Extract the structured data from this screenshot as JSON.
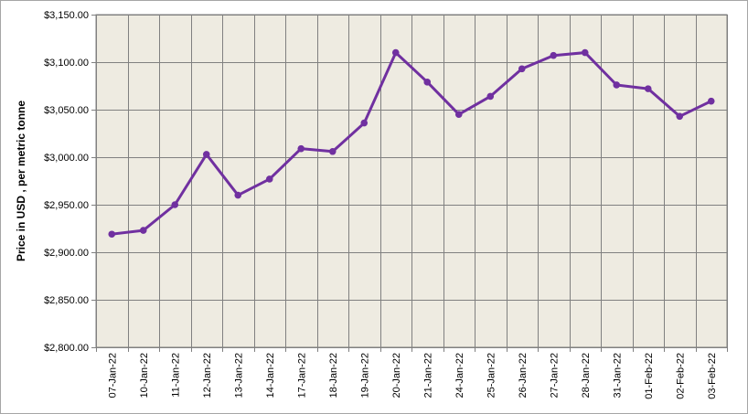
{
  "chart_data": {
    "type": "line",
    "title": "",
    "xlabel": "",
    "ylabel": "Price in USD , per metric tonne",
    "ylim": [
      2800,
      3150
    ],
    "ytick_step": 50,
    "ytick_labels": [
      "$2,800.00",
      "$2,850.00",
      "$2,900.00",
      "$2,950.00",
      "$3,000.00",
      "$3,050.00",
      "$3,100.00",
      "$3,150.00"
    ],
    "categories": [
      "07-Jan-22",
      "10-Jan-22",
      "11-Jan-22",
      "12-Jan-22",
      "13-Jan-22",
      "14-Jan-22",
      "17-Jan-22",
      "18-Jan-22",
      "19-Jan-22",
      "20-Jan-22",
      "21-Jan-22",
      "24-Jan-22",
      "25-Jan-22",
      "26-Jan-22",
      "27-Jan-22",
      "28-Jan-22",
      "31-Jan-22",
      "01-Feb-22",
      "02-Feb-22",
      "03-Feb-22"
    ],
    "values": [
      2919,
      2923,
      2950,
      3003,
      2960,
      2977,
      3009,
      3006,
      3036,
      3110,
      3079,
      3045,
      3064,
      3093,
      3107,
      3110,
      3076,
      3072,
      3043,
      3059
    ],
    "grid": true,
    "legend": "none",
    "colors": {
      "line": "#7030a0",
      "plot_background": "#eeebe1",
      "grid": "#808080"
    }
  }
}
